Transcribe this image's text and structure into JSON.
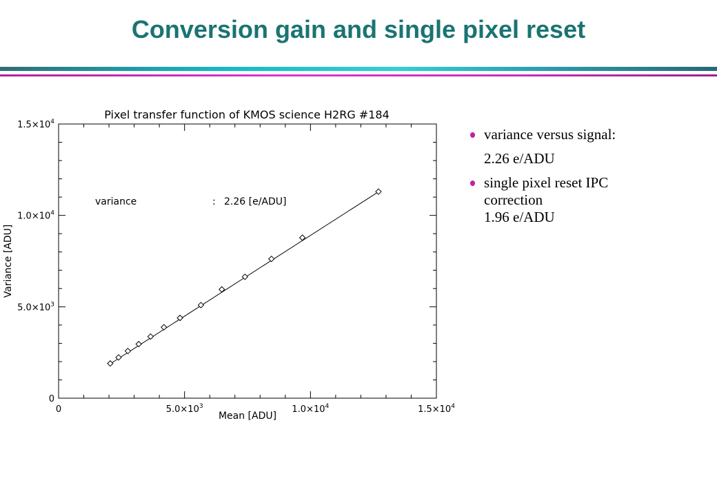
{
  "slide": {
    "title": "Conversion gain and single pixel reset",
    "accent_colors": {
      "title": "#1a7472",
      "rule_teal": "#1eb8c4",
      "rule_magenta": "#c42fb0",
      "bullet": "#c21fa8"
    }
  },
  "bullets": [
    {
      "text": "variance versus signal:",
      "sub": "2.26 e/ADU"
    },
    {
      "text": "single pixel reset IPC",
      "sub": "correction",
      "sub2": "1.96 e/ADU"
    }
  ],
  "chart_data": {
    "type": "scatter",
    "title": "Pixel transfer function of KMOS science H2RG #184",
    "xlabel": "Mean [ADU]",
    "ylabel": "Variance [ADU]",
    "xlim": [
      0,
      15000
    ],
    "ylim": [
      0,
      15000
    ],
    "x_ticks": [
      {
        "value": 0,
        "mant": "0",
        "exp": ""
      },
      {
        "value": 5000,
        "mant": "5.0×10",
        "exp": "3"
      },
      {
        "value": 10000,
        "mant": "1.0×10",
        "exp": "4"
      },
      {
        "value": 15000,
        "mant": "1.5×10",
        "exp": "4"
      }
    ],
    "y_ticks": [
      {
        "value": 0,
        "mant": "0",
        "exp": ""
      },
      {
        "value": 5000,
        "mant": "5.0×10",
        "exp": "3"
      },
      {
        "value": 10000,
        "mant": "1.0×10",
        "exp": "4"
      },
      {
        "value": 15000,
        "mant": "1.5×10",
        "exp": "4"
      }
    ],
    "annotation": {
      "label": "variance",
      "sep": ":",
      "value": "2.26 [e/ADU]"
    },
    "series": [
      {
        "marker": "diamond",
        "x": [
          2050,
          2380,
          2750,
          3180,
          3650,
          4180,
          4820,
          5650,
          6480,
          7400,
          8450,
          9680,
          12700
        ],
        "y": [
          1900,
          2230,
          2580,
          2960,
          3370,
          3880,
          4390,
          5090,
          5950,
          6640,
          7620,
          8780,
          11300
        ]
      }
    ],
    "fit_line": {
      "x": [
        2050,
        12700
      ],
      "y": [
        1880,
        11290
      ]
    },
    "grid": false
  }
}
